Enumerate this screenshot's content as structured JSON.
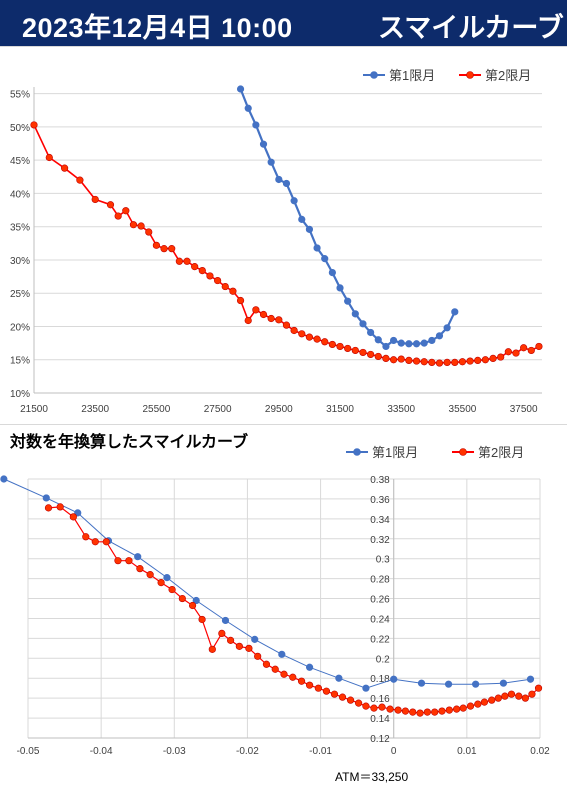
{
  "header": {
    "date": "2023年12月4日 10:00",
    "title": "スマイルカーブ"
  },
  "colors": {
    "header_bg": "#0d2b6b",
    "series1": "#4472c4",
    "series2_line": "#ff0000",
    "series2_marker": "#ff3300"
  },
  "chart_data": [
    {
      "type": "line",
      "title": "",
      "xlabel": "",
      "ylabel": "",
      "xlim": [
        21500,
        38100
      ],
      "ylim": [
        0.1,
        0.56
      ],
      "x_ticks": [
        21500,
        23500,
        25500,
        27500,
        29500,
        31500,
        33500,
        35500,
        37500
      ],
      "y_ticks": [
        0.1,
        0.15,
        0.2,
        0.25,
        0.3,
        0.35,
        0.4,
        0.45,
        0.5,
        0.55
      ],
      "y_tick_labels": [
        "10%",
        "15%",
        "20%",
        "25%",
        "30%",
        "35%",
        "40%",
        "45%",
        "50%",
        "55%"
      ],
      "grid": true,
      "legend_position": "top-right",
      "series": [
        {
          "name": "第1限月",
          "x": [
            28250,
            28500,
            28750,
            29000,
            29250,
            29500,
            29750,
            30000,
            30250,
            30500,
            30750,
            31000,
            31250,
            31500,
            31750,
            32000,
            32250,
            32500,
            32750,
            33000,
            33250,
            33500,
            33750,
            34000,
            34250,
            34500,
            34750,
            35000,
            35250
          ],
          "values": [
            0.557,
            0.528,
            0.503,
            0.474,
            0.447,
            0.421,
            0.415,
            0.389,
            0.361,
            0.346,
            0.318,
            0.302,
            0.281,
            0.258,
            0.238,
            0.219,
            0.204,
            0.191,
            0.18,
            0.17,
            0.179,
            0.175,
            0.174,
            0.174,
            0.175,
            0.179,
            0.186,
            0.198,
            0.222
          ]
        },
        {
          "name": "第2限月",
          "x": [
            21500,
            22000,
            22500,
            23000,
            23500,
            24000,
            24250,
            24500,
            24750,
            25000,
            25250,
            25500,
            25750,
            26000,
            26250,
            26500,
            26750,
            27000,
            27250,
            27500,
            27750,
            28000,
            28250,
            28500,
            28750,
            29000,
            29250,
            29500,
            29750,
            30000,
            30250,
            30500,
            30750,
            31000,
            31250,
            31500,
            31750,
            32000,
            32250,
            32500,
            32750,
            33000,
            33250,
            33500,
            33750,
            34000,
            34250,
            34500,
            34750,
            35000,
            35250,
            35500,
            35750,
            36000,
            36250,
            36500,
            36750,
            37000,
            37250,
            37500,
            37750,
            38000
          ],
          "values": [
            0.503,
            0.454,
            0.438,
            0.42,
            0.391,
            0.383,
            0.366,
            0.374,
            0.353,
            0.351,
            0.342,
            0.322,
            0.317,
            0.317,
            0.298,
            0.298,
            0.29,
            0.284,
            0.276,
            0.269,
            0.26,
            0.253,
            0.239,
            0.209,
            0.225,
            0.218,
            0.212,
            0.21,
            0.202,
            0.194,
            0.189,
            0.184,
            0.181,
            0.177,
            0.173,
            0.17,
            0.167,
            0.164,
            0.161,
            0.158,
            0.155,
            0.152,
            0.15,
            0.151,
            0.149,
            0.148,
            0.147,
            0.146,
            0.145,
            0.146,
            0.146,
            0.147,
            0.148,
            0.149,
            0.15,
            0.152,
            0.154,
            0.162,
            0.16,
            0.168,
            0.164,
            0.17
          ]
        }
      ]
    },
    {
      "type": "line",
      "title": "対数を年換算したスマイルカーブ",
      "xlabel": "",
      "ylabel": "",
      "xlim": [
        -0.05,
        0.02
      ],
      "ylim": [
        0.12,
        0.38
      ],
      "x_ticks": [
        -0.05,
        -0.04,
        -0.03,
        -0.02,
        -0.01,
        0,
        0.01,
        0.02
      ],
      "x_tick_labels": [
        "-0.05",
        "-0.04",
        "-0.03",
        "-0.02",
        "-0.01",
        "0",
        "0.01",
        "0.02"
      ],
      "y_ticks": [
        0.12,
        0.14,
        0.16,
        0.18,
        0.2,
        0.22,
        0.24,
        0.26,
        0.28,
        0.3,
        0.32,
        0.34,
        0.36,
        0.38
      ],
      "y_tick_labels": [
        "0.12",
        "0.14",
        "0.16",
        "0.18",
        "0.2",
        "0.22",
        "0.24",
        "0.26",
        "0.28",
        "0.3",
        "0.32",
        "0.34",
        "0.36",
        "0.38"
      ],
      "y_axis_at_x": 0,
      "grid": true,
      "legend_position": "top-right",
      "annotation": "ATM＝33,250",
      "series": [
        {
          "name": "第1限月",
          "x": [
            -0.0533,
            -0.0475,
            -0.0432,
            -0.039,
            -0.035,
            -0.031,
            -0.027,
            -0.023,
            -0.019,
            -0.0153,
            -0.0115,
            -0.0075,
            -0.0038,
            0.0,
            0.0038,
            0.0075,
            0.0112,
            0.015,
            0.0187
          ],
          "values": [
            0.38,
            0.361,
            0.346,
            0.318,
            0.302,
            0.281,
            0.258,
            0.238,
            0.219,
            0.204,
            0.191,
            0.18,
            0.17,
            0.179,
            0.175,
            0.174,
            0.174,
            0.175,
            0.179
          ]
        },
        {
          "name": "第2限月",
          "x": [
            -0.0472,
            -0.0456,
            -0.0438,
            -0.0421,
            -0.0408,
            -0.0393,
            -0.0377,
            -0.0362,
            -0.0347,
            -0.0333,
            -0.0318,
            -0.0303,
            -0.0289,
            -0.0275,
            -0.0262,
            -0.0248,
            -0.0235,
            -0.0223,
            -0.0211,
            -0.0198,
            -0.0186,
            -0.0174,
            -0.0162,
            -0.015,
            -0.0138,
            -0.0126,
            -0.0115,
            -0.0103,
            -0.0092,
            -0.0081,
            -0.007,
            -0.0059,
            -0.0048,
            -0.0038,
            -0.0027,
            -0.0016,
            -0.0005,
            0.0006,
            0.0016,
            0.0026,
            0.0036,
            0.0046,
            0.0056,
            0.0066,
            0.0076,
            0.0086,
            0.0095,
            0.0105,
            0.0115,
            0.0124,
            0.0134,
            0.0143,
            0.0152,
            0.0161,
            0.0171,
            0.018,
            0.0189,
            0.0198
          ],
          "values": [
            0.351,
            0.352,
            0.342,
            0.322,
            0.317,
            0.317,
            0.298,
            0.298,
            0.29,
            0.284,
            0.276,
            0.269,
            0.26,
            0.253,
            0.239,
            0.209,
            0.225,
            0.218,
            0.212,
            0.21,
            0.202,
            0.194,
            0.189,
            0.184,
            0.181,
            0.177,
            0.173,
            0.17,
            0.167,
            0.164,
            0.161,
            0.158,
            0.155,
            0.152,
            0.15,
            0.151,
            0.149,
            0.148,
            0.147,
            0.146,
            0.145,
            0.146,
            0.146,
            0.147,
            0.148,
            0.149,
            0.15,
            0.152,
            0.154,
            0.156,
            0.158,
            0.16,
            0.162,
            0.164,
            0.162,
            0.16,
            0.164,
            0.17
          ]
        }
      ]
    }
  ]
}
